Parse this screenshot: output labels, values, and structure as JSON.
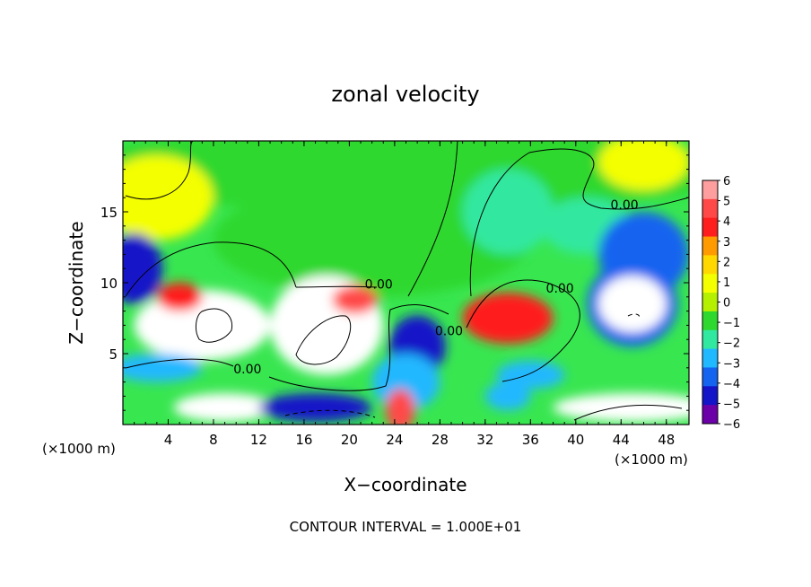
{
  "chart_data": {
    "type": "heatmap",
    "title": "zonal velocity",
    "xlabel": "X−coordinate",
    "ylabel": "Z−coordinate",
    "x_unit_left": "(×1000 m)",
    "x_unit_right": "(×1000 m)",
    "xlim": [
      0,
      50
    ],
    "ylim": [
      0,
      20
    ],
    "x_ticks": [
      4,
      8,
      12,
      16,
      20,
      24,
      28,
      32,
      36,
      40,
      44,
      48
    ],
    "y_ticks": [
      5,
      10,
      15
    ],
    "colorbar": {
      "min": -6,
      "max": 6,
      "labels": [
        "6",
        "5",
        "4",
        "3",
        "2",
        "1",
        "0",
        "−1",
        "−2",
        "−3",
        "−4",
        "−5",
        "−6"
      ],
      "colors": [
        "#ff9e9e",
        "#ff4848",
        "#ff1e1e",
        "#ff9a00",
        "#ffd800",
        "#f4ff00",
        "#b4f000",
        "#2ed82e",
        "#30e8a0",
        "#20b8ff",
        "#1464f0",
        "#1414c8",
        "#6c00a8"
      ]
    },
    "contour_labels": [
      {
        "text": "0.00",
        "x": 44.3,
        "z": 15.2
      },
      {
        "text": "0.00",
        "x": 22.6,
        "z": 9.6
      },
      {
        "text": "0.00",
        "x": 38.6,
        "z": 9.3
      },
      {
        "text": "0.00",
        "x": 28.8,
        "z": 6.3
      },
      {
        "text": "0.00",
        "x": 11.0,
        "z": 3.6
      }
    ],
    "footer": "CONTOUR INTERVAL = 1.000E+01",
    "blobs": [
      {
        "x": 25,
        "z": 18,
        "rx": 30,
        "rz": 3,
        "v": -1.4
      },
      {
        "x": 22,
        "z": 13,
        "rx": 14,
        "rz": 4,
        "v": -0.6
      },
      {
        "x": 3,
        "z": 16,
        "rx": 5,
        "rz": 3,
        "v": 0.8
      },
      {
        "x": 46,
        "z": 18.5,
        "rx": 4,
        "rz": 2,
        "v": 0.6
      },
      {
        "x": 34,
        "z": 15,
        "rx": 4,
        "rz": 3,
        "v": -2.2
      },
      {
        "x": 41,
        "z": 14,
        "rx": 4,
        "rz": 2,
        "v": -1.8
      },
      {
        "x": 1,
        "z": 11,
        "rx": 2.5,
        "rz": 2.5,
        "v": -5
      },
      {
        "x": 46,
        "z": 12,
        "rx": 4,
        "rz": 3,
        "v": -4
      },
      {
        "x": 45,
        "z": 8.5,
        "rx": 4,
        "rz": 3,
        "v": -3.5
      },
      {
        "x": 7,
        "z": 7,
        "rx": 6,
        "rz": 2.5,
        "v": 7
      },
      {
        "x": 18,
        "z": 7,
        "rx": 5,
        "rz": 3.5,
        "v": 7
      },
      {
        "x": 45,
        "z": 8.5,
        "rx": 3,
        "rz": 2,
        "v": -8
      },
      {
        "x": 20.5,
        "z": 8.8,
        "rx": 2,
        "rz": 1,
        "v": 5
      },
      {
        "x": 5,
        "z": 9,
        "rx": 2,
        "rz": 1,
        "v": 4
      },
      {
        "x": 34,
        "z": 7.5,
        "rx": 4,
        "rz": 1.8,
        "v": 4.5
      },
      {
        "x": 26,
        "z": 5.5,
        "rx": 2.5,
        "rz": 2.2,
        "v": -5
      },
      {
        "x": 25,
        "z": 3,
        "rx": 3,
        "rz": 2,
        "v": -3
      },
      {
        "x": 3,
        "z": 4,
        "rx": 4,
        "rz": 1,
        "v": -3
      },
      {
        "x": 9,
        "z": 1.2,
        "rx": 4.5,
        "rz": 1,
        "v": 7
      },
      {
        "x": 17,
        "z": 1.2,
        "rx": 5,
        "rz": 1,
        "v": -4.5
      },
      {
        "x": 45,
        "z": 1.2,
        "rx": 7,
        "rz": 1,
        "v": 7
      },
      {
        "x": 24.5,
        "z": 1,
        "rx": 1.3,
        "rz": 1.5,
        "v": 5
      },
      {
        "x": 34,
        "z": 2,
        "rx": 2,
        "rz": 1,
        "v": -3
      },
      {
        "x": 36,
        "z": 3.5,
        "rx": 3,
        "rz": 1,
        "v": -3
      }
    ]
  }
}
